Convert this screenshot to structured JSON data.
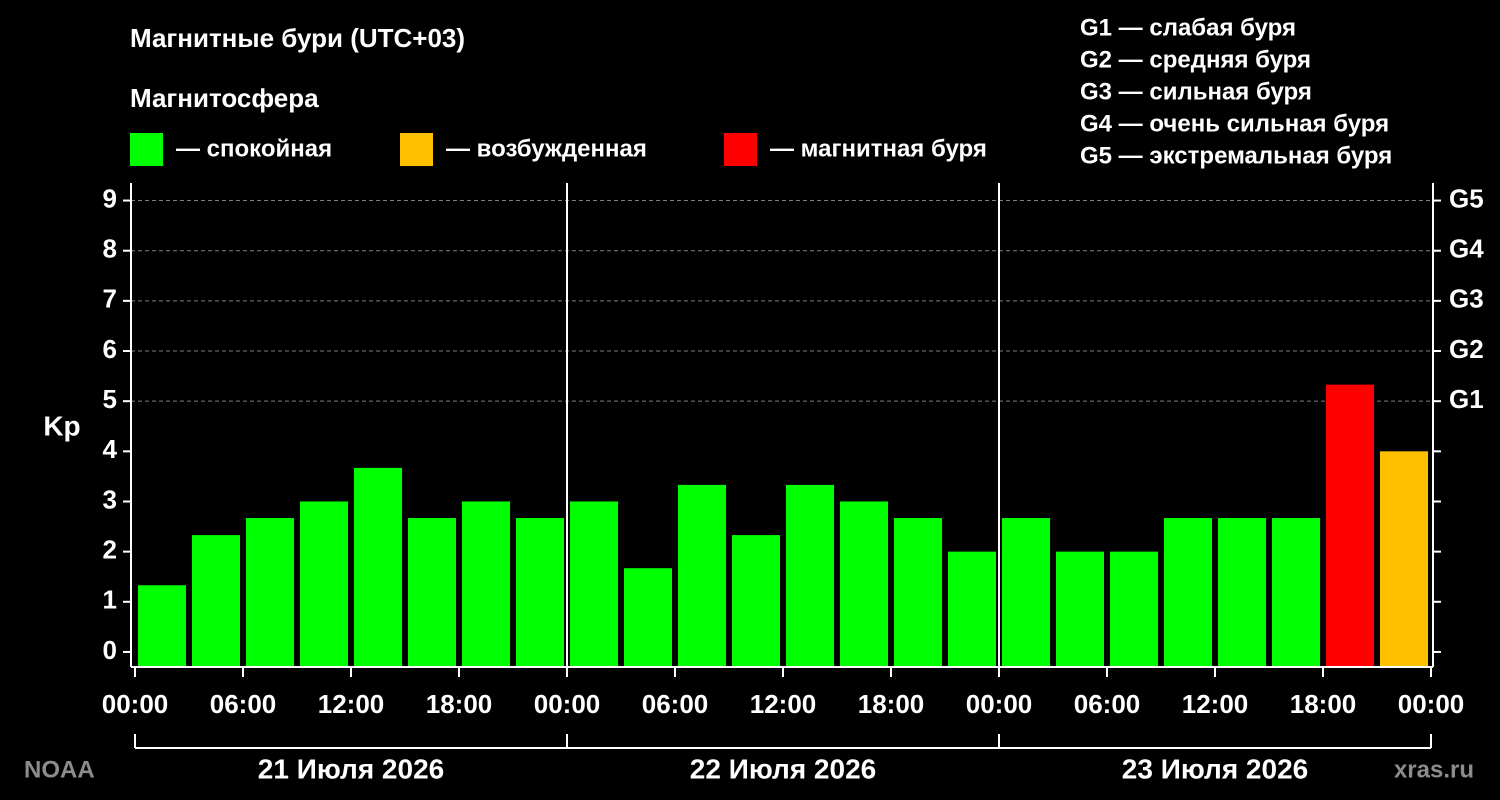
{
  "chart_data": {
    "type": "bar",
    "title": "Магнитные бури (UTC+03)",
    "subtitle": "Магнитосфера",
    "y_label": "Kp",
    "legend": [
      {
        "name": "— спокойная",
        "color": "#00ff00"
      },
      {
        "name": "— возбужденная",
        "color": "#ffc000"
      },
      {
        "name": "— магнитная буря",
        "color": "#ff0000"
      }
    ],
    "scale_notes": [
      "G1 — слабая буря",
      "G2 — средняя буря",
      "G3 — сильная буря",
      "G4 — очень сильная буря",
      "G5 — экстремальная буря"
    ],
    "x": [
      1.5,
      4.5,
      7.5,
      10.5,
      13.5,
      16.5,
      19.5,
      22.5,
      25.5,
      28.5,
      31.5,
      34.5,
      37.5,
      40.5,
      43.5,
      46.5,
      49.5,
      52.5,
      55.5,
      58.5,
      61.5,
      64.5,
      67.5,
      70.5
    ],
    "bar_width": 2.67,
    "values": [
      1.33,
      2.33,
      2.67,
      3,
      3.67,
      2.67,
      3,
      2.67,
      3,
      1.67,
      3.33,
      2.33,
      3.33,
      3,
      2.67,
      2,
      2.67,
      2,
      2,
      2.67,
      2.67,
      2.67,
      5.33,
      4
    ],
    "colors": [
      "#00ff00",
      "#00ff00",
      "#00ff00",
      "#00ff00",
      "#00ff00",
      "#00ff00",
      "#00ff00",
      "#00ff00",
      "#00ff00",
      "#00ff00",
      "#00ff00",
      "#00ff00",
      "#00ff00",
      "#00ff00",
      "#00ff00",
      "#00ff00",
      "#00ff00",
      "#00ff00",
      "#00ff00",
      "#00ff00",
      "#00ff00",
      "#00ff00",
      "#ff0000",
      "#ffc000"
    ],
    "xlim": [
      0,
      72
    ],
    "xticks": [
      {
        "value": 0,
        "label": "00:00"
      },
      {
        "value": 6,
        "label": "06:00"
      },
      {
        "value": 12,
        "label": "12:00"
      },
      {
        "value": 18,
        "label": "18:00"
      },
      {
        "value": 24,
        "label": "00:00"
      },
      {
        "value": 30,
        "label": "06:00"
      },
      {
        "value": 36,
        "label": "12:00"
      },
      {
        "value": 42,
        "label": "18:00"
      },
      {
        "value": 48,
        "label": "00:00"
      },
      {
        "value": 54,
        "label": "06:00"
      },
      {
        "value": 60,
        "label": "12:00"
      },
      {
        "value": 66,
        "label": "18:00"
      },
      {
        "value": 72,
        "label": "00:00"
      }
    ],
    "days": [
      {
        "label": "21 Июля 2026",
        "start": 0,
        "end": 24
      },
      {
        "label": "22 Июля 2026",
        "start": 24,
        "end": 48
      },
      {
        "label": "23 Июля 2026",
        "start": 48,
        "end": 72
      }
    ],
    "ylim": [
      -0.3,
      9.35
    ],
    "yticks": [
      0,
      1,
      2,
      3,
      4,
      5,
      6,
      7,
      8,
      9
    ],
    "y2ticks": [
      {
        "value": 5,
        "label": "G1"
      },
      {
        "value": 6,
        "label": "G2"
      },
      {
        "value": 7,
        "label": "G3"
      },
      {
        "value": 8,
        "label": "G4"
      },
      {
        "value": 9,
        "label": "G5"
      }
    ],
    "grid": "y2",
    "source_left": "NOAA",
    "source_right": "xras.ru"
  }
}
